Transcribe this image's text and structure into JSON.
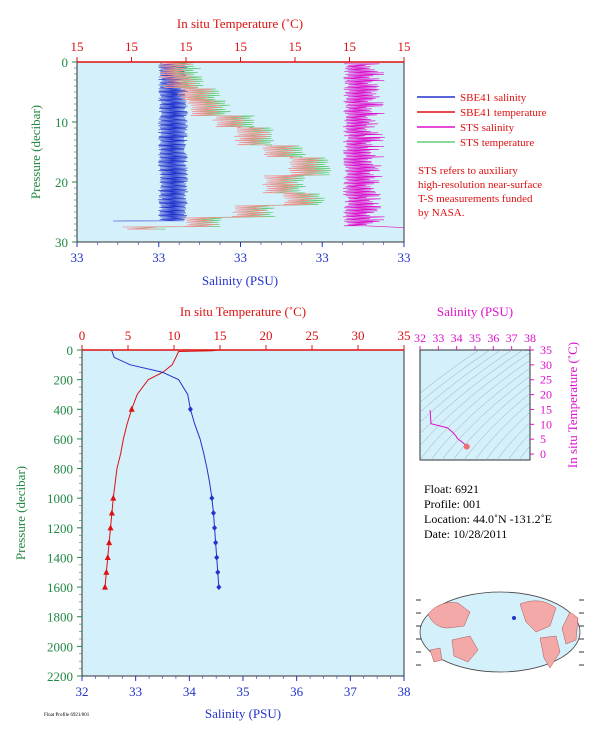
{
  "colors": {
    "panel_bg": "#d4f0fa",
    "red": "#dd1111",
    "blue": "#2233cc",
    "magenta": "#dd11cc",
    "green": "#228844",
    "pink": "#f09090",
    "lightgreen": "#66cc77",
    "dark": "#000000"
  },
  "top_plot": {
    "top_axis_label": "In situ Temperature (˚C)",
    "top_ticks": [
      "15",
      "15",
      "15",
      "15",
      "15",
      "15",
      "15"
    ],
    "bottom_axis_label": "Salinity (PSU)",
    "bottom_ticks": [
      "33",
      "33",
      "33",
      "33",
      "33"
    ],
    "left_axis_label": "Pressure (decibar)",
    "left_ticks": [
      "0",
      "10",
      "20",
      "30"
    ],
    "legend": [
      {
        "label": "SBE41 salinity",
        "color": "#2233cc"
      },
      {
        "label": "SBE41 temperature",
        "color": "#dd1111"
      },
      {
        "label": "STS salinity",
        "color": "#dd11cc"
      },
      {
        "label": "STS temperature",
        "color": "#66cc77"
      }
    ],
    "note_lines": [
      "STS refers to auxiliary",
      "high-resolution near-surface",
      "T-S measurements funded",
      "by NASA."
    ]
  },
  "main_plot": {
    "top_axis_label": "In situ Temperature (˚C)",
    "bottom_axis_label": "Salinity (PSU)",
    "left_axis_label": "Pressure (decibar)"
  },
  "ts_plot": {
    "top_axis_label": "Salinity (PSU)",
    "right_axis_label": "In situ Temperature (˚C)"
  },
  "info": {
    "float": "Float:  6921",
    "profile": "Profile:  001",
    "location": "Location:  44.0˚N  -131.2˚E",
    "date": "Date:  10/28/2011"
  },
  "credit": "Float Profile 6921/001",
  "chart_data": [
    {
      "type": "line",
      "name": "main-profile",
      "x_temperature_range": [
        0,
        35
      ],
      "x_temperature_ticks": [
        0,
        5,
        10,
        15,
        20,
        25,
        30,
        35
      ],
      "x_salinity_range": [
        32,
        38
      ],
      "x_salinity_ticks": [
        32,
        33,
        34,
        35,
        36,
        37,
        38
      ],
      "y_range": [
        0,
        2200
      ],
      "y_ticks": [
        0,
        200,
        400,
        600,
        800,
        1000,
        1200,
        1400,
        1600,
        1800,
        2000,
        2200
      ],
      "y_inverted": true,
      "grid": false,
      "temperature_profile": [
        {
          "p": 0,
          "t": 14.8
        },
        {
          "p": 5,
          "t": 14.2
        },
        {
          "p": 10,
          "t": 10.5
        },
        {
          "p": 50,
          "t": 10.2
        },
        {
          "p": 100,
          "t": 9.8
        },
        {
          "p": 150,
          "t": 8.8
        },
        {
          "p": 200,
          "t": 7.2
        },
        {
          "p": 300,
          "t": 6.0
        },
        {
          "p": 400,
          "t": 5.4
        },
        {
          "p": 500,
          "t": 4.9
        },
        {
          "p": 600,
          "t": 4.5
        },
        {
          "p": 700,
          "t": 4.2
        },
        {
          "p": 800,
          "t": 3.8
        },
        {
          "p": 900,
          "t": 3.6
        },
        {
          "p": 1000,
          "t": 3.4
        },
        {
          "p": 1100,
          "t": 3.25
        },
        {
          "p": 1200,
          "t": 3.1
        },
        {
          "p": 1300,
          "t": 2.95
        },
        {
          "p": 1400,
          "t": 2.8
        },
        {
          "p": 1500,
          "t": 2.65
        },
        {
          "p": 1600,
          "t": 2.5
        }
      ],
      "salinity_profile": [
        {
          "p": 0,
          "s": 32.55
        },
        {
          "p": 50,
          "s": 32.6
        },
        {
          "p": 100,
          "s": 32.9
        },
        {
          "p": 150,
          "s": 33.5
        },
        {
          "p": 200,
          "s": 33.8
        },
        {
          "p": 300,
          "s": 33.97
        },
        {
          "p": 400,
          "s": 34.02
        },
        {
          "p": 500,
          "s": 34.1
        },
        {
          "p": 600,
          "s": 34.2
        },
        {
          "p": 700,
          "s": 34.27
        },
        {
          "p": 800,
          "s": 34.33
        },
        {
          "p": 900,
          "s": 34.38
        },
        {
          "p": 1000,
          "s": 34.42
        },
        {
          "p": 1100,
          "s": 34.45
        },
        {
          "p": 1200,
          "s": 34.47
        },
        {
          "p": 1300,
          "s": 34.49
        },
        {
          "p": 1400,
          "s": 34.51
        },
        {
          "p": 1500,
          "s": 34.53
        },
        {
          "p": 1600,
          "s": 34.55
        }
      ],
      "temperature_markers": [
        {
          "p": 400,
          "t": 5.4
        },
        {
          "p": 1000,
          "t": 3.4
        },
        {
          "p": 1100,
          "t": 3.25
        },
        {
          "p": 1200,
          "t": 3.1
        },
        {
          "p": 1300,
          "t": 2.95
        },
        {
          "p": 1400,
          "t": 2.8
        },
        {
          "p": 1500,
          "t": 2.65
        },
        {
          "p": 1600,
          "t": 2.5
        }
      ],
      "salinity_markers": [
        {
          "p": 400,
          "s": 34.02
        },
        {
          "p": 1000,
          "s": 34.42
        },
        {
          "p": 1100,
          "s": 34.45
        },
        {
          "p": 1200,
          "s": 34.47
        },
        {
          "p": 1300,
          "s": 34.49
        },
        {
          "p": 1400,
          "s": 34.51
        },
        {
          "p": 1500,
          "s": 34.53
        },
        {
          "p": 1600,
          "s": 34.55
        }
      ]
    },
    {
      "type": "scatter",
      "name": "ts-diagram",
      "x_range": [
        32,
        38
      ],
      "x_ticks": [
        32,
        33,
        34,
        35,
        36,
        37,
        38
      ],
      "y_range": [
        -2,
        35
      ],
      "y_ticks": [
        0,
        5,
        10,
        15,
        20,
        25,
        30,
        35
      ],
      "points": [
        {
          "s": 32.55,
          "t": 14.8
        },
        {
          "s": 32.6,
          "t": 10.2
        },
        {
          "s": 33.5,
          "t": 8.8
        },
        {
          "s": 33.8,
          "t": 7.2
        },
        {
          "s": 33.97,
          "t": 6.0
        },
        {
          "s": 34.02,
          "t": 5.4
        },
        {
          "s": 34.1,
          "t": 4.9
        },
        {
          "s": 34.2,
          "t": 4.5
        },
        {
          "s": 34.3,
          "t": 4.0
        },
        {
          "s": 34.42,
          "t": 3.4
        },
        {
          "s": 34.55,
          "t": 2.5
        }
      ]
    },
    {
      "type": "line",
      "name": "near-surface-profile",
      "top_ticks": [
        "15",
        "15",
        "15",
        "15",
        "15",
        "15",
        "15"
      ],
      "bottom_ticks": [
        "33",
        "33",
        "33",
        "33",
        "33"
      ],
      "y_range": [
        0,
        30
      ],
      "y_ticks": [
        0,
        10,
        20,
        30
      ],
      "y_inverted": true
    }
  ]
}
